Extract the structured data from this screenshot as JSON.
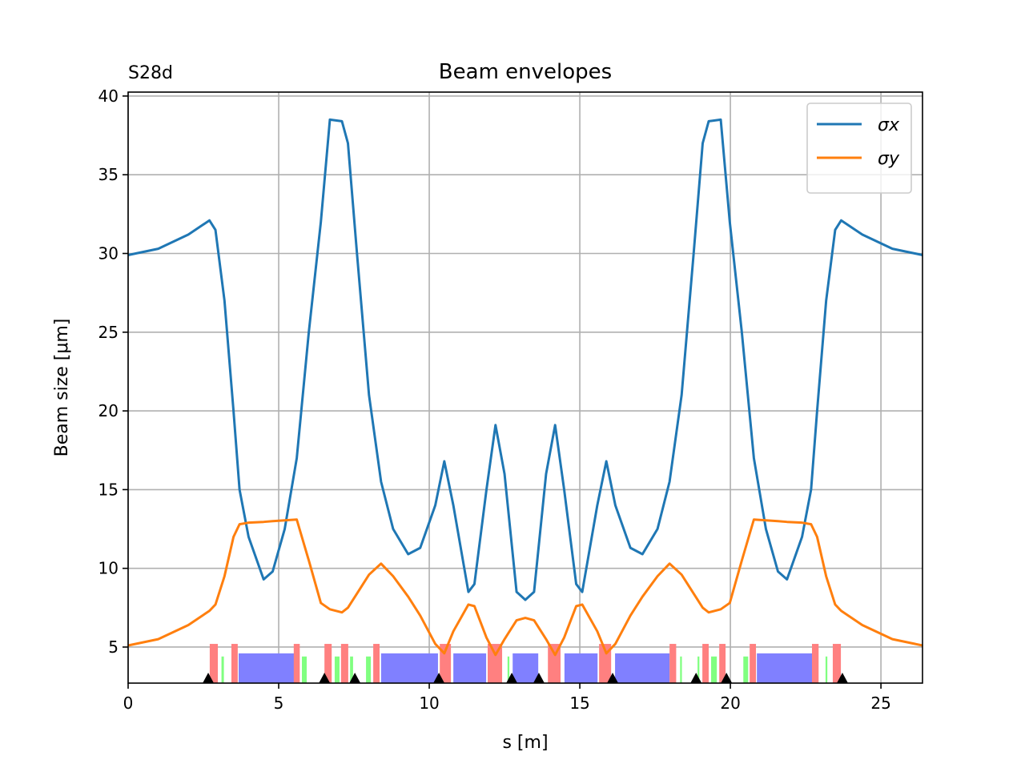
{
  "chart_data": {
    "type": "line",
    "title": "Beam envelopes",
    "corner_label": "S28d",
    "x_label": "s [m]",
    "y_label": "Beam size [μm]",
    "x": [
      0,
      1,
      2,
      2.7,
      2.9,
      3.2,
      3.5,
      3.7,
      4,
      4.5,
      4.8,
      5.2,
      5.6,
      6,
      6.4,
      6.7,
      7.1,
      7.3,
      7.6,
      8,
      8.4,
      8.8,
      9.3,
      9.7,
      10.2,
      10.5,
      10.8,
      11.3,
      11.5,
      11.9,
      12.2,
      12.5,
      12.9,
      13.19,
      13.48,
      13.88,
      14.18,
      14.48,
      14.88,
      15.08,
      15.58,
      15.88,
      16.18,
      16.68,
      17.08,
      17.58,
      17.98,
      18.38,
      18.78,
      19.08,
      19.28,
      19.68,
      19.98,
      20.38,
      20.78,
      21.18,
      21.58,
      21.88,
      22.38,
      22.68,
      22.88,
      23.18,
      23.48,
      23.68,
      24.38,
      25.38,
      26.38
    ],
    "series": [
      {
        "name": "σx",
        "color": "#1f77b4",
        "values": [
          29.9,
          30.3,
          31.2,
          32.1,
          31.5,
          27,
          20,
          15,
          12,
          9.3,
          9.8,
          12.5,
          17,
          25,
          32,
          38.5,
          38.4,
          37,
          30,
          21,
          15.5,
          12.5,
          10.9,
          11.3,
          14,
          16.8,
          14,
          8.5,
          9,
          15,
          19.1,
          16,
          8.5,
          8.0,
          8.5,
          16,
          19.1,
          15,
          9,
          8.5,
          14,
          16.8,
          14,
          11.3,
          10.9,
          12.5,
          15.5,
          21,
          30,
          37,
          38.4,
          38.5,
          32,
          25,
          17,
          12.5,
          9.8,
          9.3,
          12,
          15,
          20,
          27,
          31.5,
          32.1,
          31.2,
          30.3,
          29.9
        ]
      },
      {
        "name": "σy",
        "color": "#ff7f0e",
        "values": [
          5.1,
          5.5,
          6.4,
          7.3,
          7.7,
          9.5,
          12,
          12.8,
          12.9,
          12.95,
          13,
          13.05,
          13.1,
          10.5,
          7.8,
          7.4,
          7.2,
          7.5,
          8.4,
          9.6,
          10.3,
          9.5,
          8.2,
          7,
          5.2,
          4.6,
          6,
          7.7,
          7.6,
          5.6,
          4.5,
          5.5,
          6.7,
          6.85,
          6.7,
          5.5,
          4.5,
          5.6,
          7.6,
          7.7,
          6,
          4.6,
          5.2,
          7,
          8.2,
          9.5,
          10.3,
          9.6,
          8.4,
          7.5,
          7.2,
          7.4,
          7.8,
          10.5,
          13.1,
          13.05,
          13,
          12.95,
          12.9,
          12.8,
          12,
          9.5,
          7.7,
          7.3,
          6.4,
          5.5,
          5.1
        ]
      }
    ],
    "xlim": [
      0,
      26.38
    ],
    "ylim": [
      2.71,
      40.25
    ],
    "xticks": [
      0,
      5,
      10,
      15,
      20,
      25
    ],
    "yticks": [
      5,
      10,
      15,
      20,
      25,
      30,
      35,
      40
    ],
    "grid": true,
    "legend": "upper right",
    "lattice": {
      "dipoles": {
        "color": "#8080ff",
        "top": 4.6,
        "spans": [
          [
            3.67,
            5.53
          ],
          [
            8.4,
            10.29
          ],
          [
            10.8,
            11.89
          ],
          [
            12.77,
            13.62
          ],
          [
            14.49,
            15.59
          ],
          [
            16.17,
            17.98
          ],
          [
            20.88,
            22.71
          ]
        ]
      },
      "quadrupoles": {
        "color": "#ff8080",
        "top": 5.2,
        "spans": [
          [
            2.71,
            2.98
          ],
          [
            3.43,
            3.64
          ],
          [
            5.5,
            5.7
          ],
          [
            6.52,
            6.76
          ],
          [
            7.07,
            7.31
          ],
          [
            8.14,
            8.35
          ],
          [
            10.35,
            10.72
          ],
          [
            11.94,
            12.42
          ],
          [
            13.94,
            14.36
          ],
          [
            15.64,
            16.04
          ],
          [
            17.98,
            18.2
          ],
          [
            19.07,
            19.28
          ],
          [
            19.63,
            19.84
          ],
          [
            20.64,
            20.85
          ],
          [
            22.71,
            22.93
          ],
          [
            23.4,
            23.67
          ]
        ]
      },
      "sextupoles": {
        "color": "#80ff80",
        "top": 4.4,
        "spans": [
          [
            3.1,
            3.18
          ],
          [
            5.77,
            5.93
          ],
          [
            6.86,
            7.02
          ],
          [
            7.37,
            7.47
          ],
          [
            7.9,
            8.06
          ],
          [
            12.6,
            12.66
          ],
          [
            18.33,
            18.39
          ],
          [
            18.91,
            18.97
          ],
          [
            19.36,
            19.55
          ],
          [
            20.43,
            20.59
          ],
          [
            23.16,
            23.22
          ]
        ]
      },
      "markers": {
        "color": "#000000",
        "s": [
          2.66,
          6.52,
          7.53,
          10.32,
          12.74,
          13.64,
          16.09,
          18.86,
          19.87,
          23.72
        ]
      }
    }
  }
}
